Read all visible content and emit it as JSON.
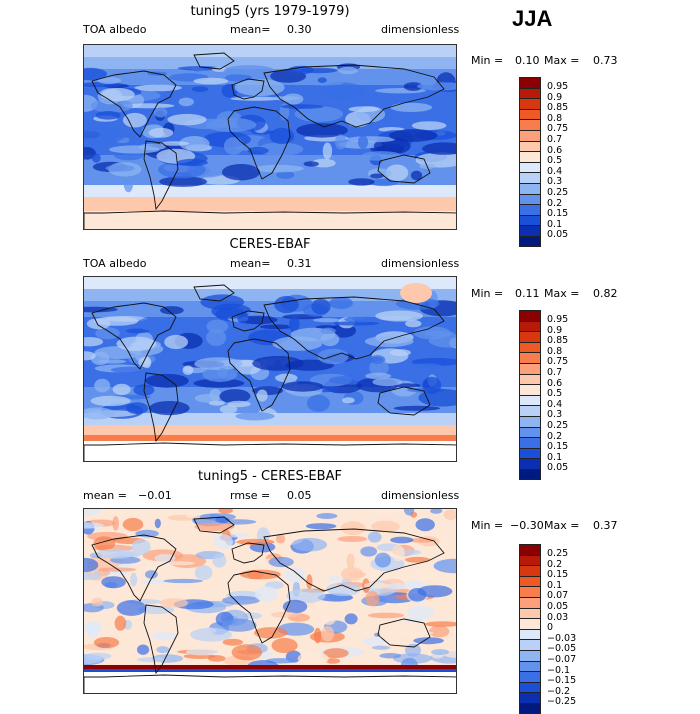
{
  "season": "JJA",
  "panels": [
    {
      "title": "tuning5 (yrs 1979-1979)",
      "left_label": "TOA albedo",
      "mean_label": "mean=",
      "mean_value": "0.30",
      "units": "dimensionless",
      "min_label": "Min =",
      "min_value": "0.10",
      "max_label": "Max =",
      "max_value": "0.73",
      "colorbar": {
        "labels": [
          "0.95",
          "0.9",
          "0.85",
          "0.8",
          "0.75",
          "0.7",
          "0.6",
          "0.5",
          "0.4",
          "0.3",
          "0.25",
          "0.2",
          "0.15",
          "0.1",
          "0.05"
        ],
        "colors": [
          "#8b0000",
          "#b81a0a",
          "#d8380f",
          "#ee5a25",
          "#f77d4c",
          "#fba07a",
          "#fdc8ac",
          "#fde8d8",
          "#dde9fb",
          "#b9d1f7",
          "#8eb4f2",
          "#6292ec",
          "#3a6fe6",
          "#1a4fd8",
          "#0b2fb0",
          "#001a80"
        ]
      },
      "map_style": "model"
    },
    {
      "title": "CERES-EBAF",
      "left_label": "TOA albedo",
      "mean_label": "mean=",
      "mean_value": "0.31",
      "units": "dimensionless",
      "min_label": "Min =",
      "min_value": "0.11",
      "max_label": "Max =",
      "max_value": "0.82",
      "colorbar": {
        "labels": [
          "0.95",
          "0.9",
          "0.85",
          "0.8",
          "0.75",
          "0.7",
          "0.6",
          "0.5",
          "0.4",
          "0.3",
          "0.25",
          "0.2",
          "0.15",
          "0.1",
          "0.05"
        ],
        "colors": [
          "#8b0000",
          "#b81a0a",
          "#d8380f",
          "#ee5a25",
          "#f77d4c",
          "#fba07a",
          "#fdc8ac",
          "#fde8d8",
          "#dde9fb",
          "#b9d1f7",
          "#8eb4f2",
          "#6292ec",
          "#3a6fe6",
          "#1a4fd8",
          "#0b2fb0",
          "#001a80"
        ]
      },
      "map_style": "obs"
    },
    {
      "title": "tuning5 - CERES-EBAF",
      "left_label": "mean =",
      "mean_label": "rmse =",
      "left_value": "−0.01",
      "mean_value": "0.05",
      "units": "dimensionless",
      "min_label": "Min =",
      "min_value": "−0.30",
      "max_label": "Max =",
      "max_value": "0.37",
      "colorbar": {
        "labels": [
          "0.25",
          "0.2",
          "0.15",
          "0.1",
          "0.07",
          "0.05",
          "0.03",
          "0",
          "−0.03",
          "−0.05",
          "−0.07",
          "−0.1",
          "−0.15",
          "−0.2",
          "−0.25"
        ],
        "colors": [
          "#8b0000",
          "#b81a0a",
          "#d8380f",
          "#ee5a25",
          "#f77d4c",
          "#fba07a",
          "#fdc8ac",
          "#fde8d8",
          "#dde9fb",
          "#b9d1f7",
          "#8eb4f2",
          "#6292ec",
          "#3a6fe6",
          "#1a4fd8",
          "#0b2fb0",
          "#001a80"
        ]
      },
      "map_style": "diff"
    }
  ]
}
